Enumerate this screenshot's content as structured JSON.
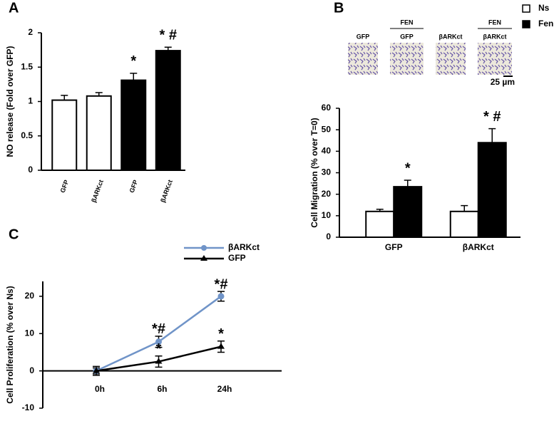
{
  "chart_data": [
    {
      "type": "bar",
      "panel": "A",
      "ylabel": "NO release (Fold over GFP)",
      "categories": [
        "GFP",
        "βARKct",
        "GFP",
        "βARKct"
      ],
      "values": [
        1.02,
        1.08,
        1.31,
        1.74
      ],
      "errors": [
        0.07,
        0.05,
        0.1,
        0.05
      ],
      "colors": [
        "#ffffff",
        "#ffffff",
        "#000000",
        "#000000"
      ],
      "significance": [
        null,
        null,
        "*",
        "* #"
      ],
      "ylim": [
        0,
        2
      ],
      "yticks": [
        0,
        0.5,
        1,
        1.5,
        2
      ]
    },
    {
      "type": "grouped-bar",
      "panel": "B",
      "ylabel": "Cell Migration (% over T=0)",
      "categories": [
        "GFP",
        "βARKct"
      ],
      "series": [
        {
          "name": "Ns",
          "color": "#ffffff",
          "values": [
            12,
            12
          ],
          "errors": [
            1,
            2.7
          ],
          "significance": [
            null,
            null
          ]
        },
        {
          "name": "Fen",
          "color": "#000000",
          "values": [
            23.5,
            44
          ],
          "errors": [
            3,
            6.5
          ],
          "significance": [
            "*",
            "* #"
          ]
        }
      ],
      "images": [
        {
          "label": "GFP"
        },
        {
          "group": "FEN",
          "label": "GFP"
        },
        {
          "label": "βARKct"
        },
        {
          "group": "FEN",
          "label": "βARKct"
        }
      ],
      "scale_bar": "25 µm",
      "legend": "top-right",
      "ylim": [
        0,
        60
      ],
      "yticks": [
        0,
        10,
        20,
        30,
        40,
        50,
        60
      ]
    },
    {
      "type": "line",
      "panel": "C",
      "ylabel": "Cell Proliferation (% over Ns)",
      "categories": [
        "0h",
        "6h",
        "24h"
      ],
      "series": [
        {
          "name": "βARKct",
          "color": "#7094c8",
          "marker": "circle",
          "values": [
            0,
            7.8,
            20
          ],
          "errors": [
            0.8,
            1.5,
            1.3
          ],
          "significance": [
            null,
            "*#",
            "*#"
          ]
        },
        {
          "name": "GFP",
          "color": "#000000",
          "marker": "triangle",
          "values": [
            0,
            2.5,
            6.5
          ],
          "errors": [
            1.2,
            1.5,
            1.5
          ],
          "significance": [
            null,
            "*",
            "*"
          ]
        }
      ],
      "ylim": [
        -10,
        24
      ],
      "yticks": [
        -10,
        0,
        10,
        20
      ]
    }
  ]
}
